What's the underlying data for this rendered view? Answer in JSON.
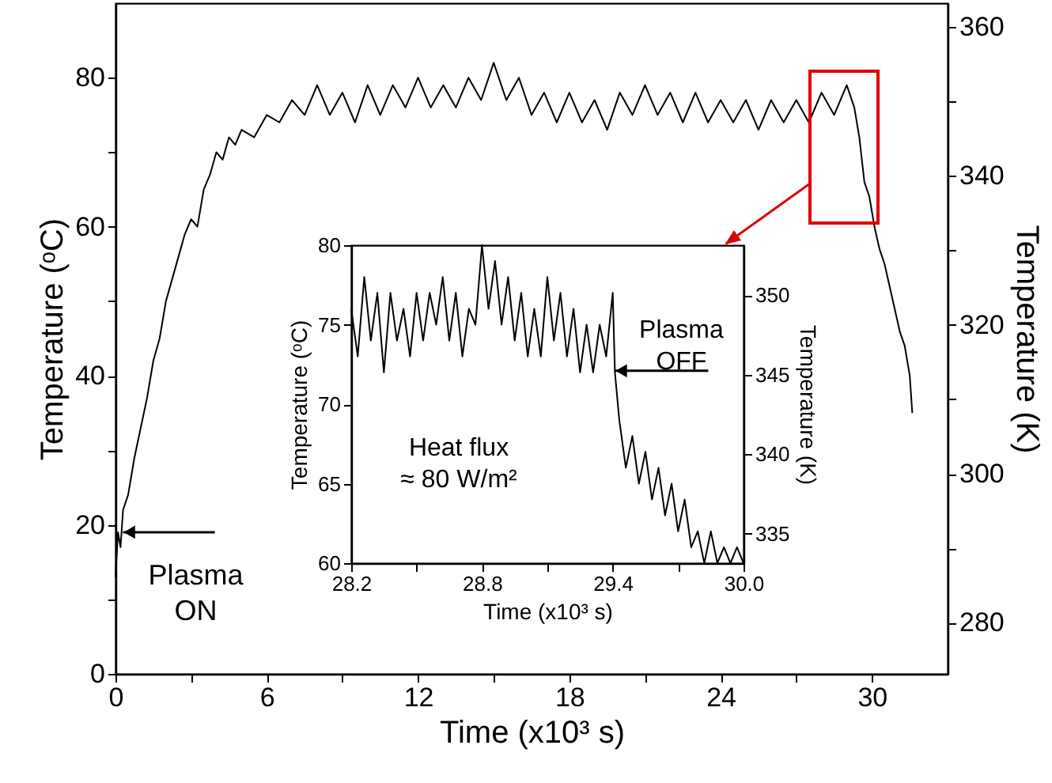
{
  "chart_data": [
    {
      "type": "line",
      "xlabel": "Time (x10³ s)",
      "ylabel": "Temperature (ᵒC)",
      "y2label": "Temperature (K)",
      "xlim": [
        0,
        33
      ],
      "xticks": [
        0,
        {
          "value": 3,
          "label": null
        },
        6,
        {
          "value": 9,
          "label": null
        },
        12,
        {
          "value": 15,
          "label": null
        },
        18,
        {
          "value": 21,
          "label": null
        },
        24,
        {
          "value": 27,
          "label": null
        },
        30
      ],
      "ylim": [
        0,
        90
      ],
      "yticks": [
        0,
        {
          "value": 10,
          "label": null
        },
        20,
        {
          "value": 30,
          "label": null
        },
        40,
        {
          "value": 50,
          "label": null
        },
        60,
        {
          "value": 70,
          "label": null
        },
        80
      ],
      "y2lim": [
        273.15,
        363.15
      ],
      "y2ticks": [
        280,
        {
          "value": 290,
          "label": null
        },
        300,
        {
          "value": 310,
          "label": null
        },
        320,
        {
          "value": 330,
          "label": null
        },
        340,
        {
          "value": 350,
          "label": null
        },
        360
      ],
      "x": [
        0,
        0.1,
        0.2,
        0.3,
        0.5,
        0.75,
        1,
        1.25,
        1.5,
        1.75,
        2,
        2.25,
        2.5,
        2.75,
        3,
        3.25,
        3.5,
        3.75,
        4,
        4.25,
        4.5,
        4.75,
        5,
        5.5,
        6,
        6.5,
        7,
        7.5,
        8,
        8.5,
        9,
        9.5,
        10,
        10.5,
        11,
        11.5,
        12,
        12.5,
        13,
        13.5,
        14,
        14.5,
        15,
        15.5,
        16,
        16.5,
        17,
        17.5,
        18,
        18.5,
        19,
        19.5,
        20,
        20.5,
        21,
        21.5,
        22,
        22.5,
        23,
        23.5,
        24,
        24.5,
        25,
        25.5,
        26,
        26.5,
        27,
        27.5,
        28,
        28.5,
        29,
        29.3,
        29.5,
        29.7,
        29.9,
        30.1,
        30.3,
        30.5,
        30.7,
        30.9,
        31.1,
        31.3,
        31.5,
        31.6
      ],
      "series": [
        {
          "color": "#000000",
          "values": [
            13,
            19,
            17,
            22,
            24,
            29,
            33,
            37,
            42,
            45,
            50,
            53,
            56,
            59,
            61,
            60,
            65,
            67,
            70,
            69,
            72,
            71,
            73,
            72,
            75,
            74,
            77,
            75,
            79,
            75,
            78,
            74,
            79,
            75,
            79,
            76,
            80,
            76,
            79,
            76,
            80,
            77,
            82,
            77,
            80,
            75,
            78,
            74,
            78,
            74,
            77,
            73,
            78,
            75,
            79,
            75,
            78,
            74,
            78,
            74,
            77,
            74,
            77,
            73,
            77,
            74,
            77,
            74,
            78,
            75,
            79,
            76,
            72,
            66,
            64,
            60,
            57,
            55,
            52,
            49,
            46,
            44,
            40,
            35
          ]
        }
      ],
      "annotations": [
        {
          "text": "Plasma\nON",
          "x": 0.3,
          "y": 19
        }
      ]
    },
    {
      "type": "line",
      "xlabel": "Time (x10³ s)",
      "ylabel": "Temperature (ᵒC)",
      "y2label": "Temperature (K)",
      "xlim": [
        28.2,
        30
      ],
      "xticks": [
        28.2,
        {
          "value": 28.5,
          "label": null
        },
        28.8,
        {
          "value": 29.1,
          "label": null
        },
        29.4,
        {
          "value": 29.7,
          "label": null
        },
        {
          "value": 30,
          "label": "30.0"
        }
      ],
      "ylim": [
        60,
        80
      ],
      "yticks": [
        60,
        65,
        70,
        75,
        80
      ],
      "y2lim": [
        333.15,
        353.15
      ],
      "y2ticks": [
        335,
        340,
        345,
        350
      ],
      "x": [
        28.2,
        28.23,
        28.26,
        28.29,
        28.32,
        28.35,
        28.38,
        28.41,
        28.44,
        28.47,
        28.5,
        28.53,
        28.56,
        28.59,
        28.62,
        28.65,
        28.68,
        28.71,
        28.74,
        28.77,
        28.8,
        28.83,
        28.86,
        28.89,
        28.92,
        28.95,
        28.98,
        29.01,
        29.04,
        29.07,
        29.1,
        29.13,
        29.16,
        29.19,
        29.22,
        29.25,
        29.28,
        29.31,
        29.34,
        29.37,
        29.4,
        29.41,
        29.43,
        29.46,
        29.49,
        29.52,
        29.55,
        29.58,
        29.61,
        29.64,
        29.67,
        29.7,
        29.73,
        29.76,
        29.79,
        29.82,
        29.85,
        29.88,
        29.91,
        29.94,
        29.97,
        30
      ],
      "series": [
        {
          "color": "#000000",
          "values": [
            76,
            73,
            78,
            74,
            77,
            72,
            77,
            74,
            76,
            73,
            77,
            74,
            77,
            75,
            78,
            74,
            77,
            73,
            76,
            75,
            80,
            76,
            79,
            75,
            78,
            74,
            77,
            73,
            76,
            73,
            78,
            74,
            77,
            73,
            76,
            72,
            75,
            72,
            75,
            73,
            77,
            72,
            69,
            66,
            68,
            65,
            67,
            64,
            66,
            63,
            65,
            62,
            64,
            61,
            62,
            60,
            62,
            60,
            61,
            60,
            61,
            60
          ]
        }
      ],
      "annotations": [
        {
          "text": "Plasma\nOFF",
          "x": 29.41,
          "y": 72.1
        },
        "Heat flux\n≈ 80 W/m²"
      ]
    }
  ]
}
